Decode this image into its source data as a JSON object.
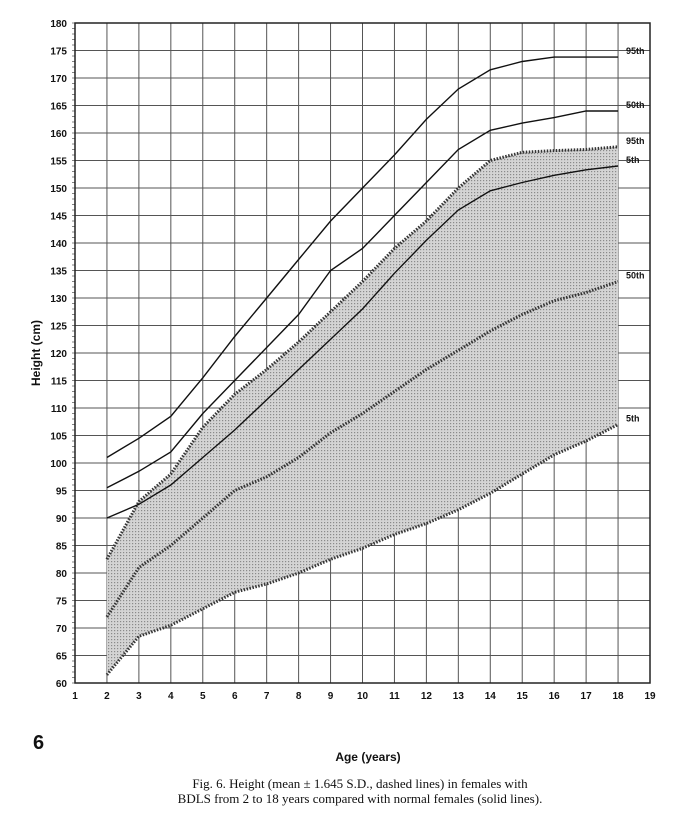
{
  "page_number": "6",
  "caption": {
    "line1": "Fig. 6.   Height (mean ± 1.645 S.D., dashed lines) in females with",
    "line2": "BDLS from 2 to 18 years compared with normal females (solid lines)."
  },
  "chart_data": {
    "type": "line",
    "xlabel": "Age (years)",
    "ylabel": "Height (cm)",
    "xlim": [
      1,
      19
    ],
    "ylim": [
      60,
      180
    ],
    "x_ticks": [
      1,
      2,
      3,
      4,
      5,
      6,
      7,
      8,
      9,
      10,
      11,
      12,
      13,
      14,
      15,
      16,
      17,
      18,
      19
    ],
    "y_ticks": [
      60,
      65,
      70,
      75,
      80,
      85,
      90,
      95,
      100,
      105,
      110,
      115,
      120,
      125,
      130,
      135,
      140,
      145,
      150,
      155,
      160,
      165,
      170,
      175,
      180
    ],
    "grid": true,
    "normal_females": [
      {
        "name": "95th",
        "style": "solid",
        "x": [
          2,
          3,
          4,
          5,
          6,
          7,
          8,
          9,
          10,
          11,
          12,
          13,
          14,
          15,
          16,
          17,
          18
        ],
        "y": [
          101,
          104.5,
          108.5,
          115.5,
          123,
          130,
          137,
          144,
          150,
          156,
          162.5,
          168,
          171.5,
          173,
          173.8,
          173.8,
          173.8
        ]
      },
      {
        "name": "50th",
        "style": "solid",
        "x": [
          2,
          3,
          4,
          5,
          6,
          7,
          8,
          9,
          10,
          11,
          12,
          13,
          14,
          15,
          16,
          17,
          18
        ],
        "y": [
          95.5,
          98.5,
          102,
          109,
          115,
          121,
          127,
          135,
          139,
          145,
          151,
          157,
          160.5,
          161.8,
          162.8,
          164,
          164
        ]
      },
      {
        "name": "5th",
        "style": "solid",
        "x": [
          2,
          3,
          4,
          5,
          6,
          7,
          8,
          9,
          10,
          11,
          12,
          13,
          14,
          15,
          16,
          17,
          18
        ],
        "y": [
          90,
          92.5,
          96,
          101,
          106,
          111.5,
          117,
          122.5,
          128,
          134.5,
          140.5,
          146,
          149.5,
          151,
          152.3,
          153.3,
          154
        ]
      }
    ],
    "bdls_females": [
      {
        "name": "95th",
        "style": "dashed",
        "x": [
          2,
          3,
          4,
          5,
          6,
          7,
          8,
          9,
          10,
          11,
          12,
          13,
          14,
          15,
          16,
          17,
          18
        ],
        "y": [
          82.5,
          93,
          98,
          106.5,
          112.5,
          117,
          122,
          127.5,
          133,
          139,
          144,
          150,
          155,
          156.5,
          156.8,
          157,
          157.5
        ]
      },
      {
        "name": "50th",
        "style": "dashed",
        "x": [
          2,
          3,
          4,
          5,
          6,
          7,
          8,
          9,
          10,
          11,
          12,
          13,
          14,
          15,
          16,
          17,
          18
        ],
        "y": [
          72,
          81,
          85,
          90,
          95,
          97.5,
          101,
          105.5,
          109,
          113,
          117,
          120.5,
          124,
          127,
          129.5,
          131,
          133
        ]
      },
      {
        "name": "5th",
        "style": "dashed",
        "x": [
          2,
          3,
          4,
          5,
          6,
          7,
          8,
          9,
          10,
          11,
          12,
          13,
          14,
          15,
          16,
          17,
          18
        ],
        "y": [
          61.5,
          68.5,
          70.5,
          73.5,
          76.5,
          78,
          80,
          82.5,
          84.5,
          87,
          89,
          91.5,
          94.5,
          98,
          101.5,
          104,
          107
        ]
      }
    ]
  }
}
